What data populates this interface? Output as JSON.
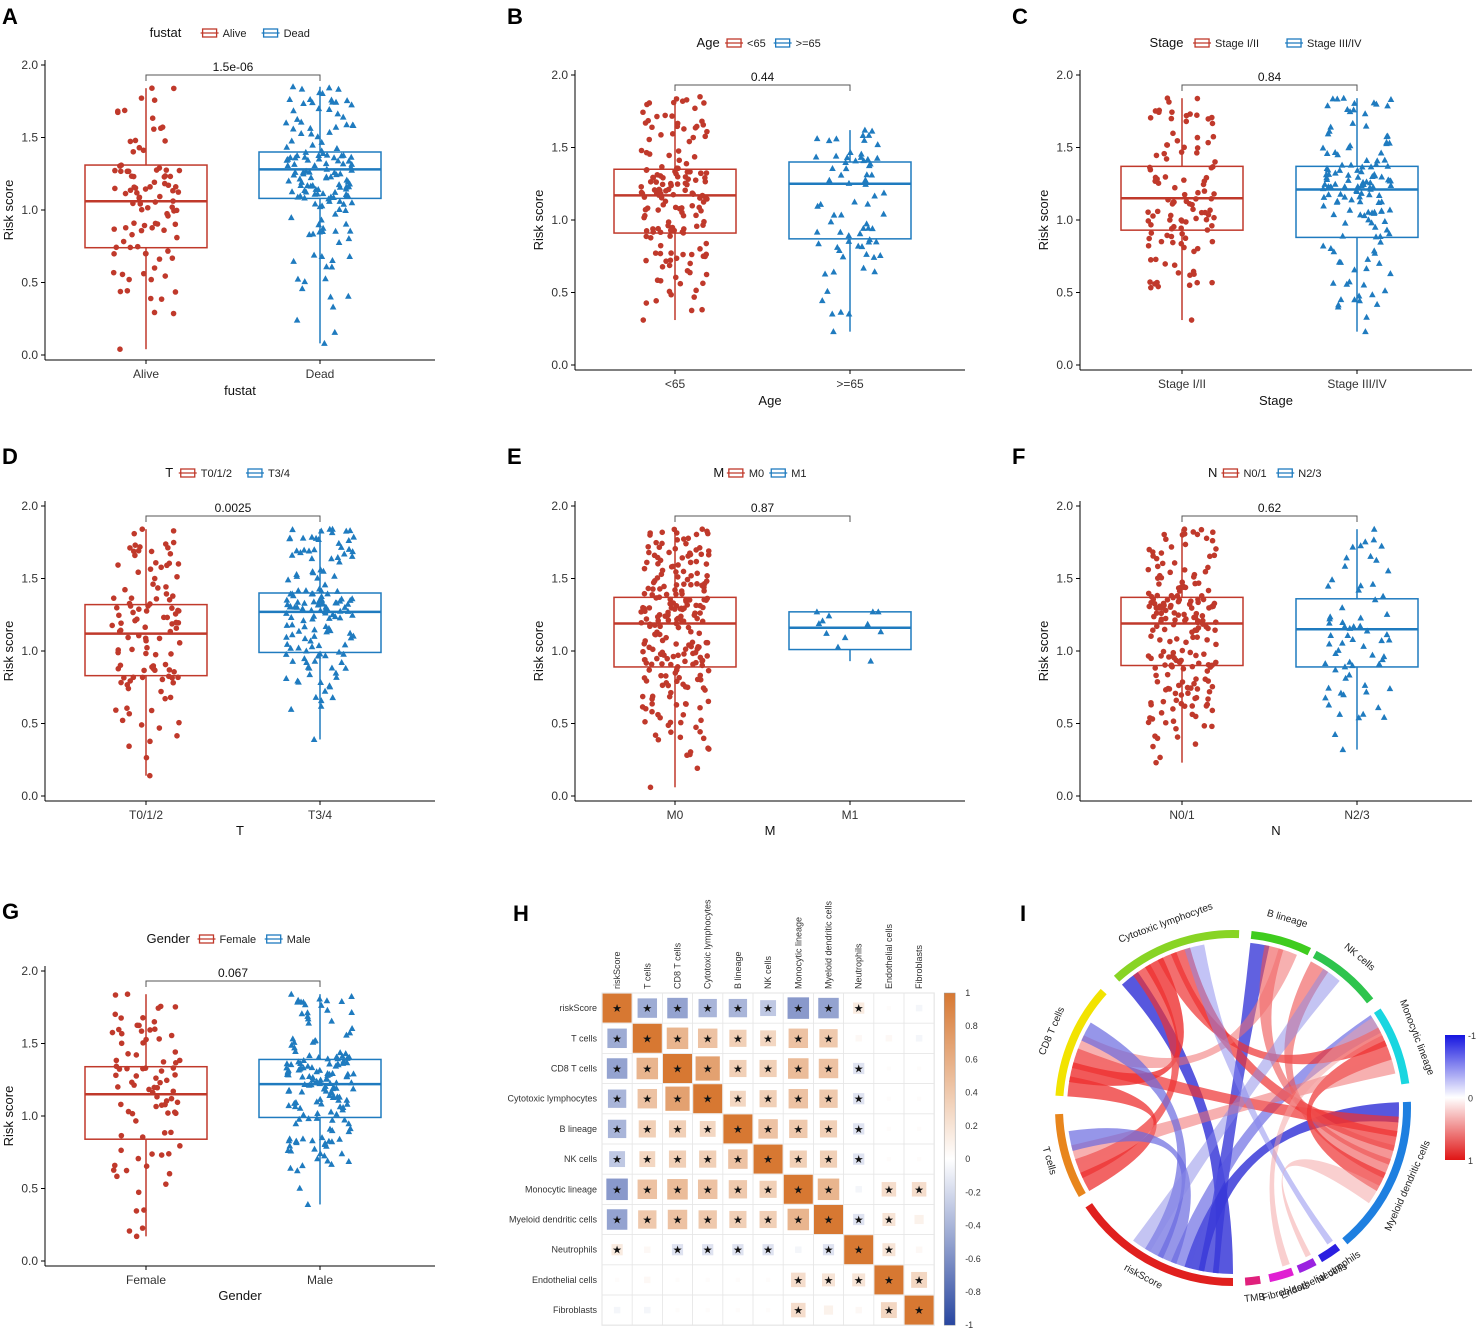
{
  "figure": {
    "y_axis_label": "Risk score",
    "y_ticks": [
      "0.0",
      "0.5",
      "1.0",
      "1.5",
      "2.0"
    ],
    "colors": {
      "group1": "#C0392B",
      "group2": "#1F7BBF"
    }
  },
  "chart_data": [
    {
      "type": "box",
      "letter": "A",
      "legend_title": "fustat",
      "groups": [
        "Alive",
        "Dead"
      ],
      "xlabel": "fustat",
      "ylabel": "Risk score",
      "pvalue": "1.5e-06",
      "ylim": [
        0,
        2
      ],
      "box_stats": [
        {
          "min": 0.04,
          "q1": 0.74,
          "median": 1.06,
          "q3": 1.31,
          "max": 1.84
        },
        {
          "min": 0.08,
          "q1": 1.08,
          "median": 1.28,
          "q3": 1.4,
          "max": 1.85
        }
      ],
      "n": [
        95,
        150
      ]
    },
    {
      "type": "box",
      "letter": "B",
      "legend_title": "Age",
      "groups": [
        "<65",
        ">=65"
      ],
      "xlabel": "Age",
      "ylabel": "Risk score",
      "pvalue": "0.44",
      "ylim": [
        0,
        2
      ],
      "box_stats": [
        {
          "min": 0.31,
          "q1": 0.91,
          "median": 1.17,
          "q3": 1.35,
          "max": 1.85
        },
        {
          "min": 0.23,
          "q1": 0.87,
          "median": 1.25,
          "q3": 1.4,
          "max": 1.62
        }
      ],
      "n": [
        160,
        70
      ]
    },
    {
      "type": "box",
      "letter": "C",
      "legend_title": "Stage",
      "groups": [
        "Stage I/II",
        "Stage III/IV"
      ],
      "xlabel": "Stage",
      "ylabel": "Risk score",
      "pvalue": "0.84",
      "ylim": [
        0,
        2
      ],
      "box_stats": [
        {
          "min": 0.31,
          "q1": 0.93,
          "median": 1.15,
          "q3": 1.37,
          "max": 1.84
        },
        {
          "min": 0.23,
          "q1": 0.88,
          "median": 1.21,
          "q3": 1.37,
          "max": 1.84
        }
      ],
      "n": [
        110,
        140
      ]
    },
    {
      "type": "box",
      "letter": "D",
      "legend_title": "T",
      "groups": [
        "T0/1/2",
        "T3/4"
      ],
      "xlabel": "T",
      "ylabel": "Risk score",
      "pvalue": "0.0025",
      "ylim": [
        0,
        2
      ],
      "box_stats": [
        {
          "min": 0.14,
          "q1": 0.83,
          "median": 1.12,
          "q3": 1.32,
          "max": 1.84
        },
        {
          "min": 0.39,
          "q1": 0.99,
          "median": 1.27,
          "q3": 1.4,
          "max": 1.84
        }
      ],
      "n": [
        110,
        150
      ]
    },
    {
      "type": "box",
      "letter": "E",
      "legend_title": "M",
      "groups": [
        "M0",
        "M1"
      ],
      "xlabel": "M",
      "ylabel": "Risk score",
      "pvalue": "0.87",
      "ylim": [
        0,
        2
      ],
      "box_stats": [
        {
          "min": 0.06,
          "q1": 0.89,
          "median": 1.19,
          "q3": 1.37,
          "max": 1.84
        },
        {
          "min": 0.93,
          "q1": 1.01,
          "median": 1.16,
          "q3": 1.27,
          "max": 1.27
        }
      ],
      "n": [
        230,
        10
      ]
    },
    {
      "type": "box",
      "letter": "F",
      "legend_title": "N",
      "groups": [
        "N0/1",
        "N2/3"
      ],
      "xlabel": "N",
      "ylabel": "Risk score",
      "pvalue": "0.62",
      "ylim": [
        0,
        2
      ],
      "box_stats": [
        {
          "min": 0.23,
          "q1": 0.9,
          "median": 1.19,
          "q3": 1.37,
          "max": 1.84
        },
        {
          "min": 0.32,
          "q1": 0.89,
          "median": 1.15,
          "q3": 1.36,
          "max": 1.84
        }
      ],
      "n": [
        200,
        65
      ]
    },
    {
      "type": "box",
      "letter": "G",
      "legend_title": "Gender",
      "groups": [
        "Female",
        "Male"
      ],
      "xlabel": "Gender",
      "ylabel": "Risk score",
      "pvalue": "0.067",
      "ylim": [
        0,
        2
      ],
      "box_stats": [
        {
          "min": 0.17,
          "q1": 0.84,
          "median": 1.15,
          "q3": 1.34,
          "max": 1.84
        },
        {
          "min": 0.39,
          "q1": 0.99,
          "median": 1.22,
          "q3": 1.39,
          "max": 1.84
        }
      ],
      "n": [
        85,
        165
      ]
    },
    {
      "type": "heatmap",
      "letter": "H",
      "variables": [
        "riskScore",
        "T cells",
        "CD8 T cells",
        "Cytotoxic lymphocytes",
        "B lineage",
        "NK cells",
        "Monocytic lineage",
        "Myeloid dendritic cells",
        "Neutrophils",
        "Endothelial cells",
        "Fibroblasts"
      ],
      "matrix": [
        [
          1.0,
          -0.45,
          -0.5,
          -0.4,
          -0.4,
          -0.3,
          -0.55,
          -0.5,
          0.15,
          0.02,
          -0.05
        ],
        [
          -0.45,
          1.0,
          0.55,
          0.45,
          0.35,
          0.3,
          0.45,
          0.4,
          0.05,
          0.05,
          -0.05
        ],
        [
          -0.5,
          0.55,
          1.0,
          0.7,
          0.35,
          0.35,
          0.5,
          0.45,
          -0.15,
          0.02,
          0.02
        ],
        [
          -0.4,
          0.45,
          0.7,
          1.0,
          0.3,
          0.35,
          0.45,
          0.4,
          -0.15,
          0.02,
          0.02
        ],
        [
          -0.4,
          0.35,
          0.35,
          0.3,
          1.0,
          0.45,
          0.4,
          0.35,
          -0.15,
          0.02,
          0.02
        ],
        [
          -0.3,
          0.3,
          0.35,
          0.35,
          0.45,
          1.0,
          0.35,
          0.35,
          -0.15,
          0.02,
          0.02
        ],
        [
          -0.55,
          0.45,
          0.5,
          0.45,
          0.4,
          0.35,
          1.0,
          0.55,
          -0.05,
          0.25,
          0.25
        ],
        [
          -0.5,
          0.4,
          0.45,
          0.4,
          0.35,
          0.35,
          0.55,
          1.0,
          -0.15,
          0.2,
          0.1
        ],
        [
          0.15,
          0.05,
          -0.15,
          -0.15,
          -0.15,
          -0.15,
          -0.05,
          -0.15,
          1.0,
          0.2,
          0.05
        ],
        [
          0.02,
          0.05,
          0.02,
          0.02,
          0.02,
          0.02,
          0.25,
          0.2,
          0.2,
          1.0,
          0.3
        ],
        [
          -0.05,
          -0.05,
          0.02,
          0.02,
          0.02,
          0.02,
          0.25,
          0.1,
          0.05,
          0.3,
          1.0
        ]
      ],
      "significant": [
        [
          1,
          1,
          1,
          1,
          1,
          1,
          1,
          1,
          1,
          0,
          0
        ],
        [
          1,
          1,
          1,
          1,
          1,
          1,
          1,
          1,
          0,
          0,
          0
        ],
        [
          1,
          1,
          1,
          1,
          1,
          1,
          1,
          1,
          1,
          0,
          0
        ],
        [
          1,
          1,
          1,
          1,
          1,
          1,
          1,
          1,
          1,
          0,
          0
        ],
        [
          1,
          1,
          1,
          1,
          1,
          1,
          1,
          1,
          1,
          0,
          0
        ],
        [
          1,
          1,
          1,
          1,
          1,
          1,
          1,
          1,
          1,
          0,
          0
        ],
        [
          1,
          1,
          1,
          1,
          1,
          1,
          1,
          1,
          0,
          1,
          1
        ],
        [
          1,
          1,
          1,
          1,
          1,
          1,
          1,
          1,
          1,
          1,
          0
        ],
        [
          1,
          0,
          1,
          1,
          1,
          1,
          0,
          1,
          1,
          1,
          0
        ],
        [
          0,
          0,
          0,
          0,
          0,
          0,
          1,
          1,
          1,
          1,
          1
        ],
        [
          0,
          0,
          0,
          0,
          0,
          0,
          1,
          0,
          0,
          1,
          1
        ]
      ],
      "colorbar_ticks": [
        "1",
        "0.8",
        "0.6",
        "0.4",
        "0.2",
        "0",
        "-0.2",
        "-0.4",
        "-0.6",
        "-0.8",
        "-1"
      ],
      "star": "★"
    },
    {
      "type": "chord",
      "letter": "I",
      "sectors": [
        {
          "name": "T cells",
          "color": "#E8851C"
        },
        {
          "name": "CD8 T cells",
          "color": "#F2E300"
        },
        {
          "name": "Cytotoxic lymphocytes",
          "color": "#88D424"
        },
        {
          "name": "B lineage",
          "color": "#3FCC1E"
        },
        {
          "name": "NK cells",
          "color": "#2EC44D"
        },
        {
          "name": "Monocytic lineage",
          "color": "#19D6E0"
        },
        {
          "name": "Myeloid dendritic cells",
          "color": "#1E7FE0"
        },
        {
          "name": "Neutrophils",
          "color": "#2A1FE0"
        },
        {
          "name": "Endothelial cells",
          "color": "#9A22E0"
        },
        {
          "name": "Fibroblasts",
          "color": "#E020D2"
        },
        {
          "name": "TMB",
          "color": "#E0207C"
        },
        {
          "name": "riskScore",
          "color": "#E0201E"
        }
      ],
      "legend_ticks": [
        "-1",
        "0",
        "1"
      ]
    }
  ]
}
